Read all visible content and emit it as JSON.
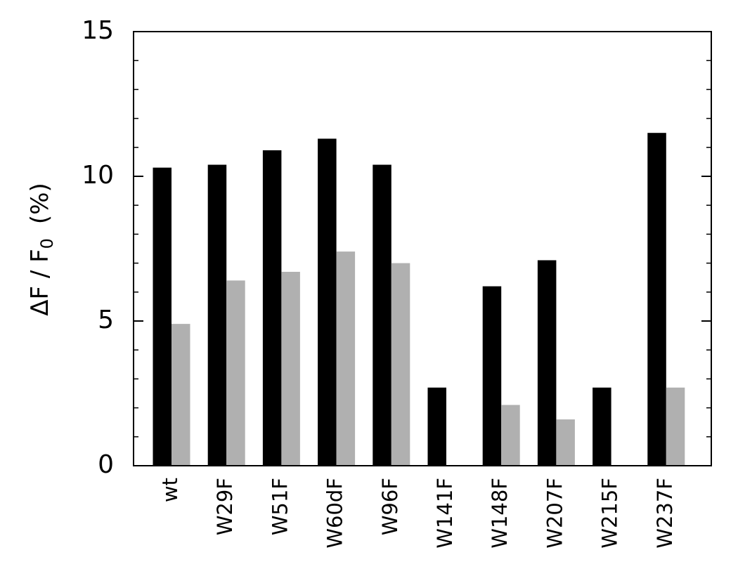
{
  "chart_data": {
    "type": "bar",
    "ylabel": "ΔF / F",
    "ylabel_subscript": "0",
    "ylabel_unit": "(%)",
    "categories": [
      "wt",
      "W29F",
      "W51F",
      "W60dF",
      "W96F",
      "W141F",
      "W148F",
      "W207F",
      "W215F",
      "W237F"
    ],
    "series": [
      {
        "color": "#000000",
        "values": [
          10.3,
          10.4,
          10.9,
          11.3,
          10.4,
          2.7,
          6.2,
          7.1,
          2.7,
          11.5
        ]
      },
      {
        "color": "#b0b0b0",
        "values": [
          4.9,
          6.4,
          6.7,
          7.4,
          7.0,
          0,
          2.1,
          1.6,
          0,
          2.7
        ]
      }
    ],
    "ylim": [
      0,
      15
    ],
    "yticks": [
      0,
      5,
      10,
      15
    ],
    "yminorticks": [
      1,
      2,
      3,
      4,
      6,
      7,
      8,
      9,
      11,
      12,
      13,
      14
    ]
  }
}
